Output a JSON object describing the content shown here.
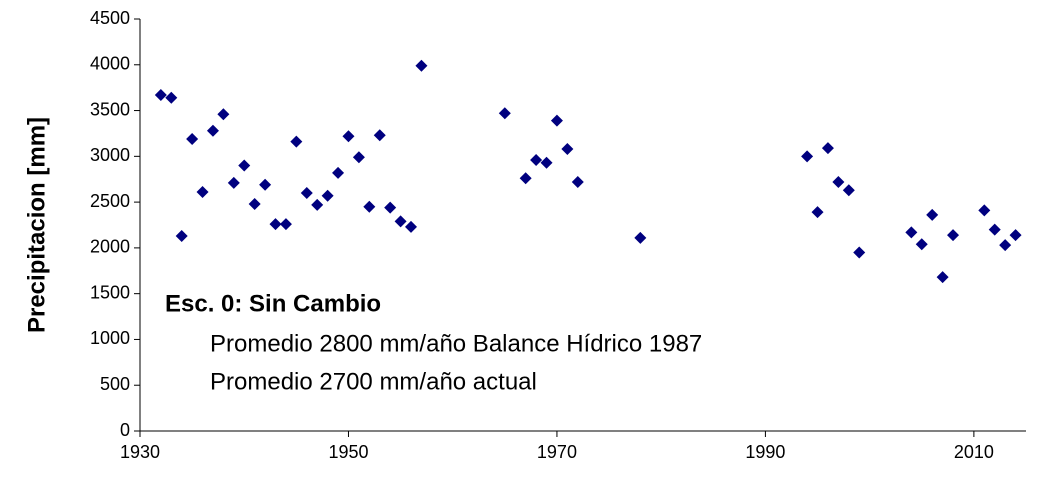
{
  "chart_data": {
    "type": "scatter",
    "ylabel": "Precipitacion [mm]",
    "annotations": [
      "Esc. 0: Sin Cambio",
      "Promedio 2800 mm/año Balance Hídrico 1987",
      "Promedio 2700 mm/año actual"
    ],
    "color": "#00007f",
    "x": [
      1932,
      1933,
      1934,
      1935,
      1936,
      1937,
      1938,
      1939,
      1940,
      1941,
      1942,
      1943,
      1944,
      1945,
      1946,
      1947,
      1948,
      1949,
      1950,
      1951,
      1952,
      1953,
      1954,
      1955,
      1956,
      1957,
      1965,
      1967,
      1968,
      1969,
      1970,
      1971,
      1972,
      1978,
      1994,
      1995,
      1996,
      1997,
      1998,
      1999,
      2004,
      2005,
      2006,
      2007,
      2008,
      2011,
      2012,
      2013,
      2014
    ],
    "values": [
      3670,
      3640,
      2130,
      3190,
      2610,
      3280,
      3460,
      2710,
      2900,
      2480,
      2690,
      2260,
      2260,
      3160,
      2600,
      2470,
      2570,
      2820,
      3220,
      2990,
      2450,
      3230,
      2440,
      2290,
      2230,
      3990,
      3470,
      2760,
      2960,
      2930,
      3390,
      3080,
      2720,
      2110,
      3000,
      2390,
      3090,
      2720,
      2630,
      1950,
      2170,
      2040,
      2360,
      1680,
      2140,
      2410,
      2200,
      2030,
      2140
    ],
    "xlim": [
      1930,
      2015
    ],
    "xticks": [
      1930,
      1950,
      1970,
      1990,
      2010
    ],
    "ylim": [
      0,
      4500
    ],
    "yticks": [
      0,
      500,
      1000,
      1500,
      2000,
      2500,
      3000,
      3500,
      4000,
      4500
    ]
  }
}
